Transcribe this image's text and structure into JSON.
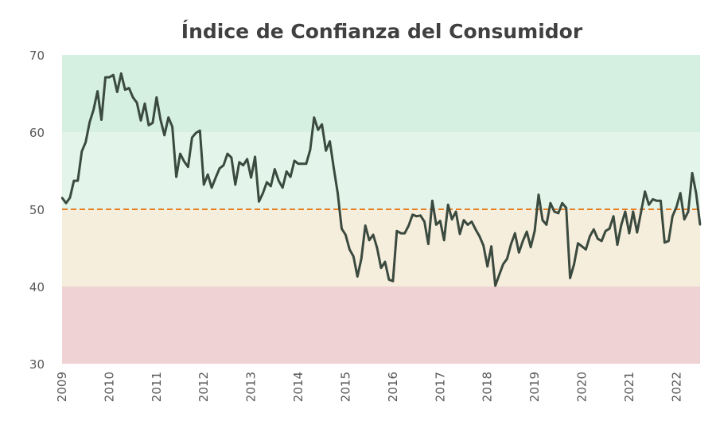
{
  "chart_data": {
    "type": "line",
    "title": "Índice de Confianza del Consumidor",
    "xlabel": "",
    "ylabel": "",
    "ylim": [
      30,
      70
    ],
    "xlim": [
      2009,
      2022.5
    ],
    "yticks": [
      "30",
      "40",
      "50",
      "60",
      "70"
    ],
    "xticks": [
      "2009",
      "2010",
      "2011",
      "2012",
      "2013",
      "2014",
      "2015",
      "2016",
      "2017",
      "2018",
      "2019",
      "2020",
      "2021",
      "2022"
    ],
    "grid": false,
    "legend": "none",
    "frequency": "monthly",
    "start": 2009,
    "bands": [
      {
        "from": 60,
        "to": 70,
        "color": "#d5efe1"
      },
      {
        "from": 50,
        "to": 60,
        "color": "#e3f4ea"
      },
      {
        "from": 40,
        "to": 50,
        "color": "#f6eedd"
      },
      {
        "from": 30,
        "to": 40,
        "color": "#efd3d4"
      }
    ],
    "reference_line": {
      "value": 50,
      "color": "#e67e22",
      "style": "dashed"
    },
    "series": [
      {
        "name": "Índice de Confianza del Consumidor",
        "color": "#3b4a3f",
        "values": [
          51.5,
          50.8,
          51.5,
          53.7,
          53.7,
          57.5,
          58.7,
          61.3,
          62.9,
          65.3,
          61.6,
          67.1,
          67.1,
          67.4,
          65.2,
          67.6,
          65.5,
          65.7,
          64.5,
          63.8,
          61.5,
          63.7,
          60.9,
          61.2,
          64.5,
          61.6,
          59.6,
          61.9,
          60.7,
          54.2,
          57.2,
          56.2,
          55.5,
          59.3,
          59.9,
          60.2,
          53.2,
          54.5,
          52.8,
          54.1,
          55.3,
          55.7,
          57.2,
          56.7,
          53.2,
          56.1,
          55.7,
          56.5,
          54.1,
          56.8,
          51.0,
          52.1,
          53.5,
          53.0,
          55.2,
          53.7,
          52.8,
          54.9,
          54.2,
          56.3,
          55.9,
          55.9,
          55.9,
          57.7,
          61.9,
          60.3,
          61.0,
          57.6,
          58.8,
          55.3,
          52.1,
          47.5,
          46.7,
          44.8,
          43.9,
          41.3,
          43.6,
          47.9,
          46.0,
          46.7,
          45.0,
          42.4,
          43.2,
          40.9,
          40.7,
          47.2,
          46.9,
          46.9,
          47.9,
          49.3,
          49.1,
          49.2,
          48.4,
          45.5,
          51.1,
          48.0,
          48.5,
          46.0,
          50.6,
          48.7,
          49.7,
          46.8,
          48.6,
          48.0,
          48.4,
          47.4,
          46.5,
          45.3,
          42.6,
          45.2,
          40.1,
          41.5,
          42.9,
          43.6,
          45.5,
          46.9,
          44.4,
          45.9,
          47.1,
          45.1,
          47.2,
          51.9,
          48.6,
          48.0,
          50.8,
          49.7,
          49.5,
          50.8,
          50.2,
          41.1,
          42.9,
          45.6,
          45.2,
          44.8,
          46.5,
          47.4,
          46.2,
          45.9,
          47.2,
          47.5,
          49.1,
          45.4,
          48.0,
          49.7,
          46.9,
          49.7,
          47.0,
          49.6,
          52.3,
          50.6,
          51.3,
          51.1,
          51.1,
          45.7,
          45.9,
          49.1,
          50.3,
          52.1,
          48.7,
          49.7,
          54.7,
          52.1,
          48.0
        ]
      }
    ]
  }
}
